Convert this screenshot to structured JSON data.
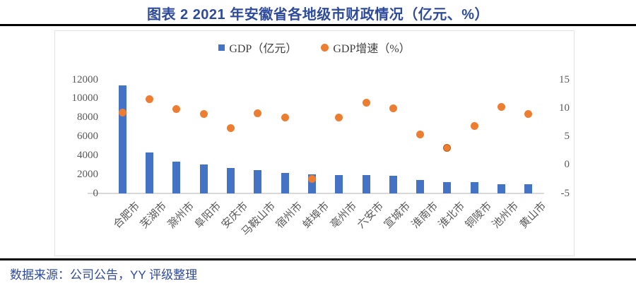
{
  "title": "图表 2 2021 年安徽省各地级市财政情况（亿元、%）",
  "source_note": "数据来源：公司公告，YY 评级整理",
  "legend": {
    "gdp_label": "GDP（亿元）",
    "growth_label": "GDP增速（%）"
  },
  "colors": {
    "bar_blue": "#4472C4",
    "dot_orange": "#ED7D31",
    "highlight_dot_border": "#BE5A14",
    "title_blue": "#2E4B9B",
    "tick_gray": "#595959",
    "axis_line_gray": "#D9D9D9"
  },
  "axes": {
    "left_ticks": [
      "0",
      "2000",
      "4000",
      "6000",
      "8000",
      "10000",
      "12000"
    ],
    "right_ticks": [
      "-5",
      "0",
      "5",
      "10",
      "15"
    ]
  },
  "highlighted_city": "淮北市",
  "chart_data": {
    "type": "bar",
    "title": "图表 2 2021 年安徽省各地级市财政情况（亿元、%）",
    "categories": [
      "合肥市",
      "芜湖市",
      "滁州市",
      "阜阳市",
      "安庆市",
      "马鞍山市",
      "宿州市",
      "蚌埠市",
      "亳州市",
      "六安市",
      "宣城市",
      "淮南市",
      "淮北市",
      "铜陵市",
      "池州市",
      "黄山市"
    ],
    "series": [
      {
        "name": "GDP（亿元）",
        "type": "bar",
        "axis": "left",
        "values": [
          11412.8,
          4302.6,
          3362.1,
          3071.5,
          2656.9,
          2439.3,
          2167.6,
          1989.5,
          1972.7,
          1923.5,
          1833.9,
          1457.1,
          1223.0,
          1167.1,
          1004.2,
          956.2
        ]
      },
      {
        "name": "GDP增速（%）",
        "type": "scatter",
        "axis": "right",
        "values": [
          9.2,
          11.6,
          9.9,
          9.0,
          6.5,
          9.1,
          8.4,
          -2.4,
          8.4,
          11.0,
          10.0,
          5.4,
          3.0,
          6.9,
          10.2,
          9.0
        ]
      }
    ],
    "ylim_left": [
      0,
      12000
    ],
    "ylim_right": [
      -5,
      15
    ],
    "grid": false,
    "legend_position": "top-center",
    "xlabel": "",
    "ylabel_left": "GDP（亿元）",
    "ylabel_right": "GDP增速（%）"
  }
}
